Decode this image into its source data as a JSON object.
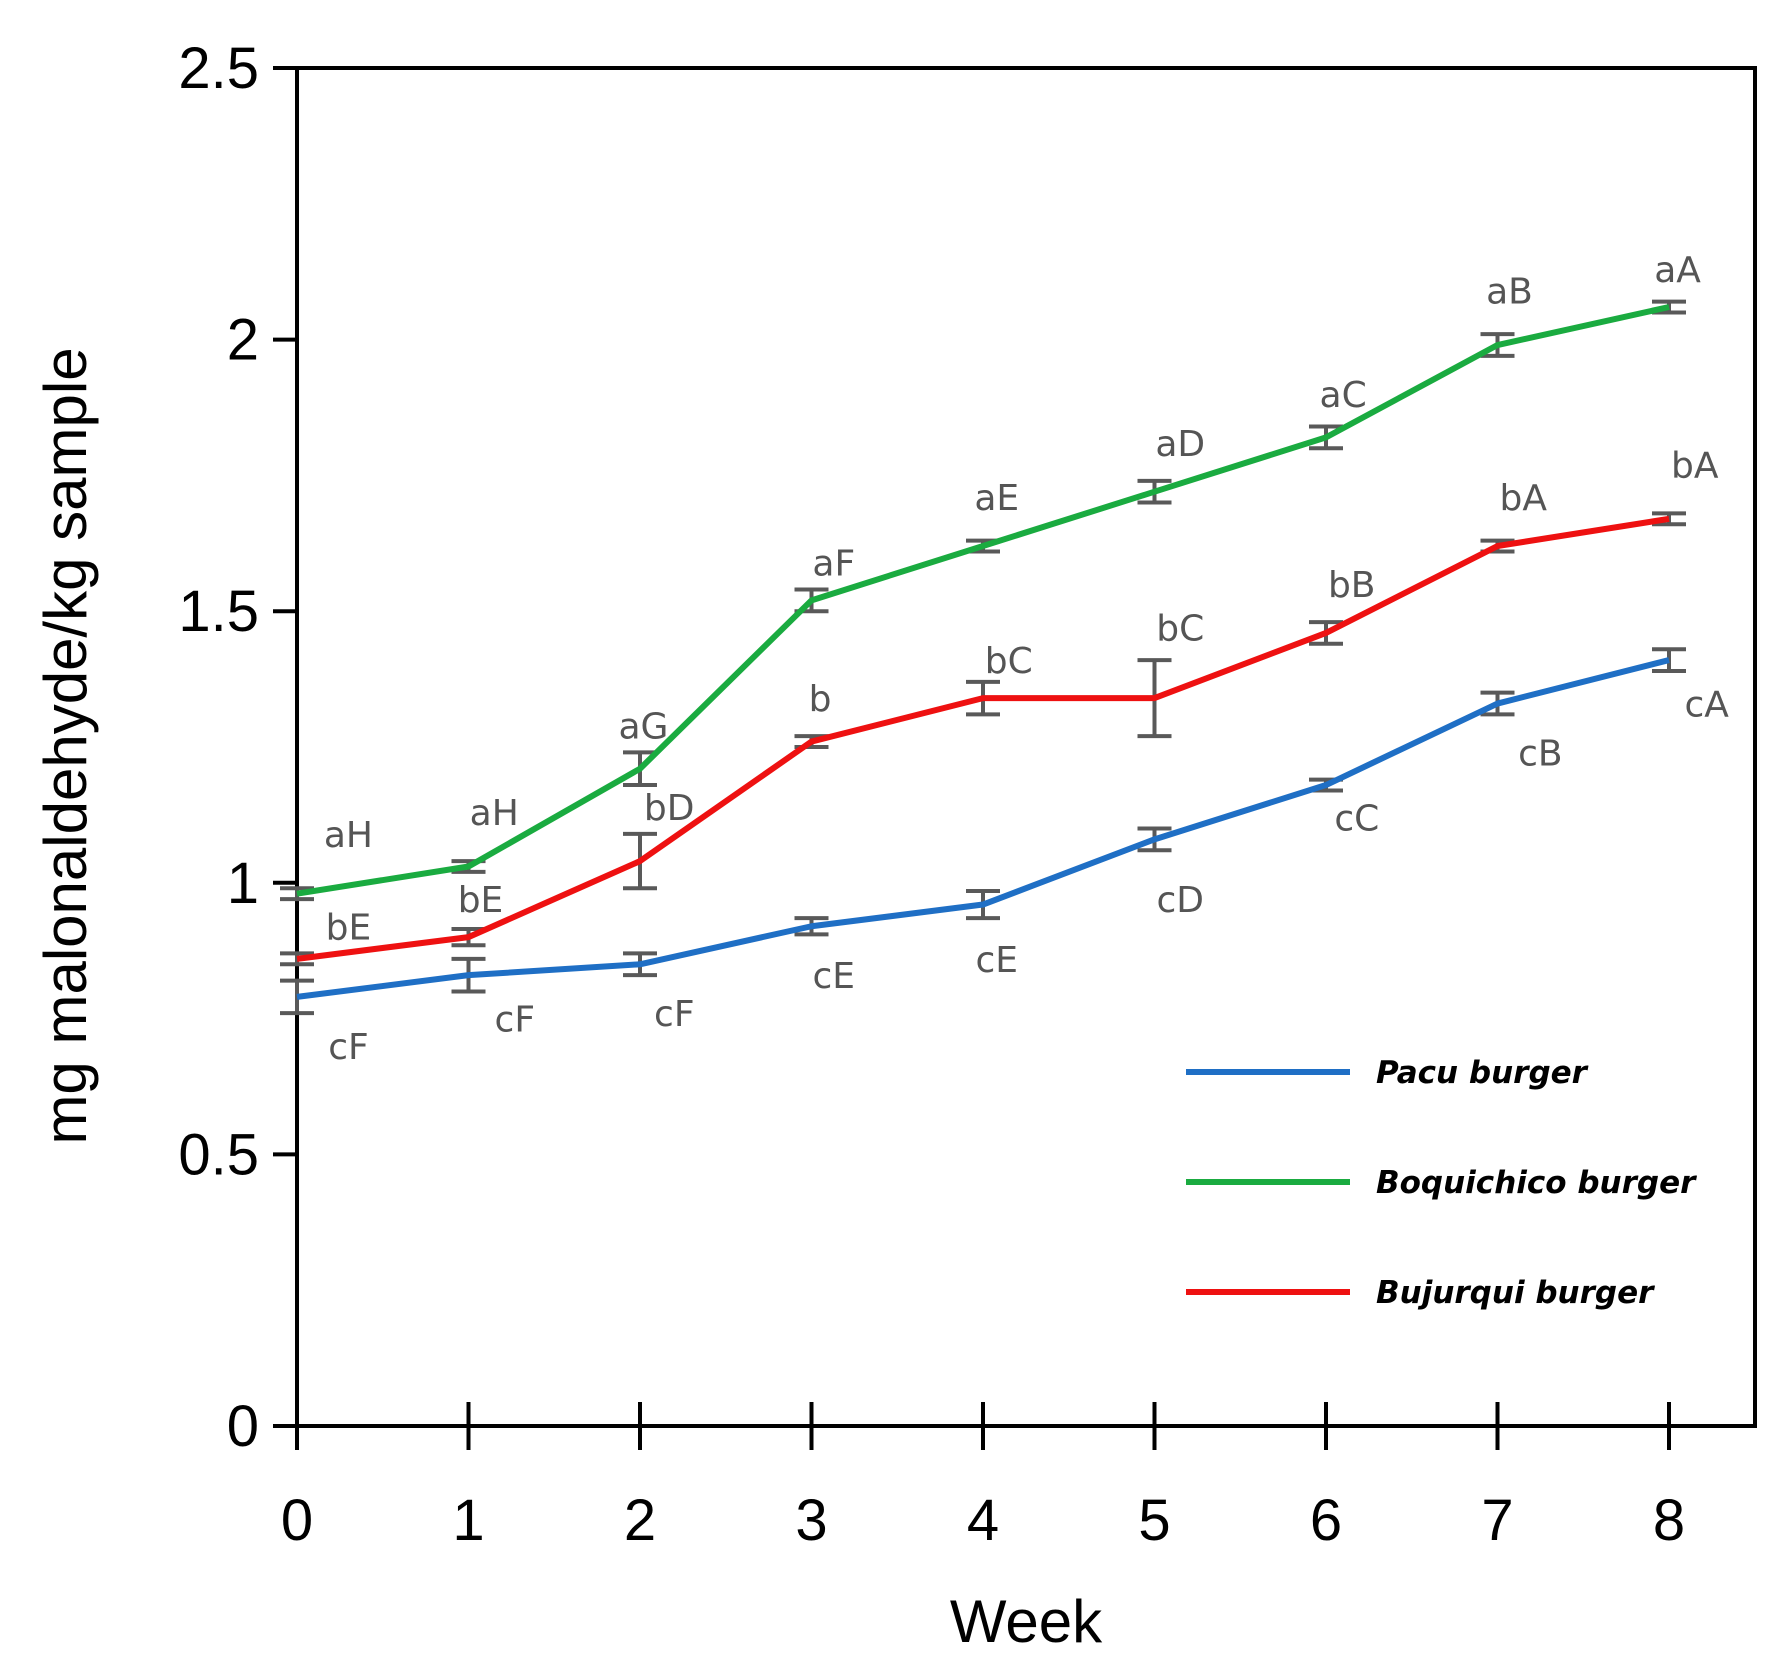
{
  "chart_data": {
    "type": "line",
    "xlabel": "Week",
    "ylabel": "mg malonaldehyde/kg sample",
    "xlim": [
      0,
      8.5
    ],
    "ylim": [
      0,
      2.5
    ],
    "x": [
      0,
      1,
      2,
      3,
      4,
      5,
      6,
      7,
      8
    ],
    "x_tick_labels": [
      "0",
      "1",
      "2",
      "3",
      "4",
      "5",
      "6",
      "7",
      "8"
    ],
    "y_ticks": [
      0,
      0.5,
      1,
      1.5,
      2,
      2.5
    ],
    "y_tick_labels": [
      "0",
      "0.5",
      "1",
      "1.5",
      "2",
      "2.5"
    ],
    "legend_position": "lower-right",
    "series": [
      {
        "name": "Pacu burger",
        "color": "#1f6fc5",
        "values": [
          0.79,
          0.83,
          0.85,
          0.92,
          0.96,
          1.08,
          1.18,
          1.33,
          1.41
        ],
        "errors": [
          0.03,
          0.03,
          0.02,
          0.015,
          0.025,
          0.02,
          0.01,
          0.02,
          0.02
        ],
        "labels": [
          "cF",
          "cF",
          "cF",
          "cE",
          "cE",
          "cD",
          "cC",
          "cB",
          "cA"
        ],
        "label_offsets": [
          [
            0.3,
            -0.09
          ],
          [
            0.27,
            -0.08
          ],
          [
            0.2,
            -0.09
          ],
          [
            0.13,
            -0.09
          ],
          [
            0.08,
            -0.1
          ],
          [
            0.15,
            -0.11
          ],
          [
            0.18,
            -0.06
          ],
          [
            0.25,
            -0.09
          ],
          [
            0.22,
            -0.08
          ]
        ]
      },
      {
        "name": "Boquichico burger",
        "color": "#1aab40",
        "values": [
          0.98,
          1.03,
          1.21,
          1.52,
          1.62,
          1.72,
          1.82,
          1.99,
          2.06
        ],
        "errors": [
          0.01,
          0.01,
          0.03,
          0.02,
          0.01,
          0.02,
          0.02,
          0.02,
          0.01
        ],
        "labels": [
          "aH",
          "aH",
          "aG",
          "aF",
          "aE",
          "aD",
          "aC",
          "aB",
          "aA"
        ],
        "label_offsets": [
          [
            0.3,
            0.11
          ],
          [
            0.15,
            0.1
          ],
          [
            0.02,
            0.08
          ],
          [
            0.13,
            0.07
          ],
          [
            0.08,
            0.09
          ],
          [
            0.15,
            0.09
          ],
          [
            0.1,
            0.08
          ],
          [
            0.07,
            0.1
          ],
          [
            0.05,
            0.07
          ]
        ]
      },
      {
        "name": "Bujurqui burger",
        "color": "#ee1111",
        "values": [
          0.86,
          0.9,
          1.04,
          1.26,
          1.34,
          1.34,
          1.46,
          1.62,
          1.67
        ],
        "errors": [
          0.01,
          0.015,
          0.05,
          0.01,
          0.03,
          0.07,
          0.02,
          0.01,
          0.01
        ],
        "labels": [
          "bE",
          "bE",
          "bD",
          "b",
          "bC",
          "bC",
          "bB",
          "bA",
          "bA"
        ],
        "label_offsets": [
          [
            0.3,
            0.06
          ],
          [
            0.07,
            0.07
          ],
          [
            0.17,
            0.1
          ],
          [
            0.05,
            0.08
          ],
          [
            0.15,
            0.07
          ],
          [
            0.15,
            0.13
          ],
          [
            0.15,
            0.09
          ],
          [
            0.15,
            0.09
          ],
          [
            0.15,
            0.1
          ]
        ]
      }
    ]
  }
}
